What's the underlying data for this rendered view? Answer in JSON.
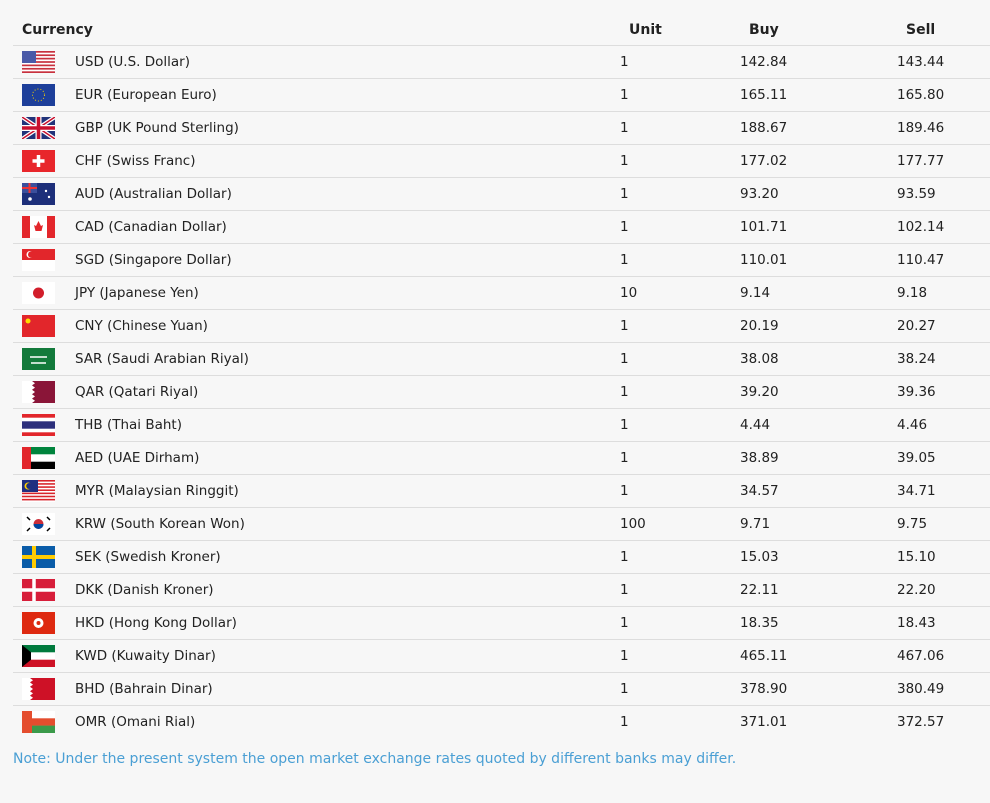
{
  "table": {
    "headers": {
      "currency": "Currency",
      "unit": "Unit",
      "buy": "Buy",
      "sell": "Sell"
    },
    "rows": [
      {
        "flag": "us-flag-icon",
        "currency": "USD (U.S. Dollar)",
        "unit": "1",
        "buy": "142.84",
        "sell": "143.44"
      },
      {
        "flag": "eu-flag-icon",
        "currency": "EUR (European Euro)",
        "unit": "1",
        "buy": "165.11",
        "sell": "165.80"
      },
      {
        "flag": "uk-flag-icon",
        "currency": "GBP (UK Pound Sterling)",
        "unit": "1",
        "buy": "188.67",
        "sell": "189.46"
      },
      {
        "flag": "ch-flag-icon",
        "currency": "CHF (Swiss Franc)",
        "unit": "1",
        "buy": "177.02",
        "sell": "177.77"
      },
      {
        "flag": "au-flag-icon",
        "currency": "AUD (Australian Dollar)",
        "unit": "1",
        "buy": "93.20",
        "sell": "93.59"
      },
      {
        "flag": "ca-flag-icon",
        "currency": "CAD (Canadian Dollar)",
        "unit": "1",
        "buy": "101.71",
        "sell": "102.14"
      },
      {
        "flag": "sg-flag-icon",
        "currency": "SGD (Singapore Dollar)",
        "unit": "1",
        "buy": "110.01",
        "sell": "110.47"
      },
      {
        "flag": "jp-flag-icon",
        "currency": "JPY (Japanese Yen)",
        "unit": "10",
        "buy": "9.14",
        "sell": "9.18"
      },
      {
        "flag": "cn-flag-icon",
        "currency": "CNY (Chinese Yuan)",
        "unit": "1",
        "buy": "20.19",
        "sell": "20.27"
      },
      {
        "flag": "sa-flag-icon",
        "currency": "SAR (Saudi Arabian Riyal)",
        "unit": "1",
        "buy": "38.08",
        "sell": "38.24"
      },
      {
        "flag": "qa-flag-icon",
        "currency": "QAR (Qatari Riyal)",
        "unit": "1",
        "buy": "39.20",
        "sell": "39.36"
      },
      {
        "flag": "th-flag-icon",
        "currency": "THB (Thai Baht)",
        "unit": "1",
        "buy": "4.44",
        "sell": "4.46"
      },
      {
        "flag": "ae-flag-icon",
        "currency": "AED (UAE Dirham)",
        "unit": "1",
        "buy": "38.89",
        "sell": "39.05"
      },
      {
        "flag": "my-flag-icon",
        "currency": "MYR (Malaysian Ringgit)",
        "unit": "1",
        "buy": "34.57",
        "sell": "34.71"
      },
      {
        "flag": "kr-flag-icon",
        "currency": "KRW (South Korean Won)",
        "unit": "100",
        "buy": "9.71",
        "sell": "9.75"
      },
      {
        "flag": "se-flag-icon",
        "currency": "SEK (Swedish Kroner)",
        "unit": "1",
        "buy": "15.03",
        "sell": "15.10"
      },
      {
        "flag": "dk-flag-icon",
        "currency": "DKK (Danish Kroner)",
        "unit": "1",
        "buy": "22.11",
        "sell": "22.20"
      },
      {
        "flag": "hk-flag-icon",
        "currency": "HKD (Hong Kong Dollar)",
        "unit": "1",
        "buy": "18.35",
        "sell": "18.43"
      },
      {
        "flag": "kw-flag-icon",
        "currency": "KWD (Kuwaity Dinar)",
        "unit": "1",
        "buy": "465.11",
        "sell": "467.06"
      },
      {
        "flag": "bh-flag-icon",
        "currency": "BHD (Bahrain Dinar)",
        "unit": "1",
        "buy": "378.90",
        "sell": "380.49"
      },
      {
        "flag": "om-flag-icon",
        "currency": "OMR (Omani Rial)",
        "unit": "1",
        "buy": "371.01",
        "sell": "372.57"
      }
    ]
  },
  "note": "Note: Under the present system the open market exchange rates quoted by different banks may differ.",
  "colors": {
    "note": "#4a9fd4",
    "border": "#dddddd"
  }
}
